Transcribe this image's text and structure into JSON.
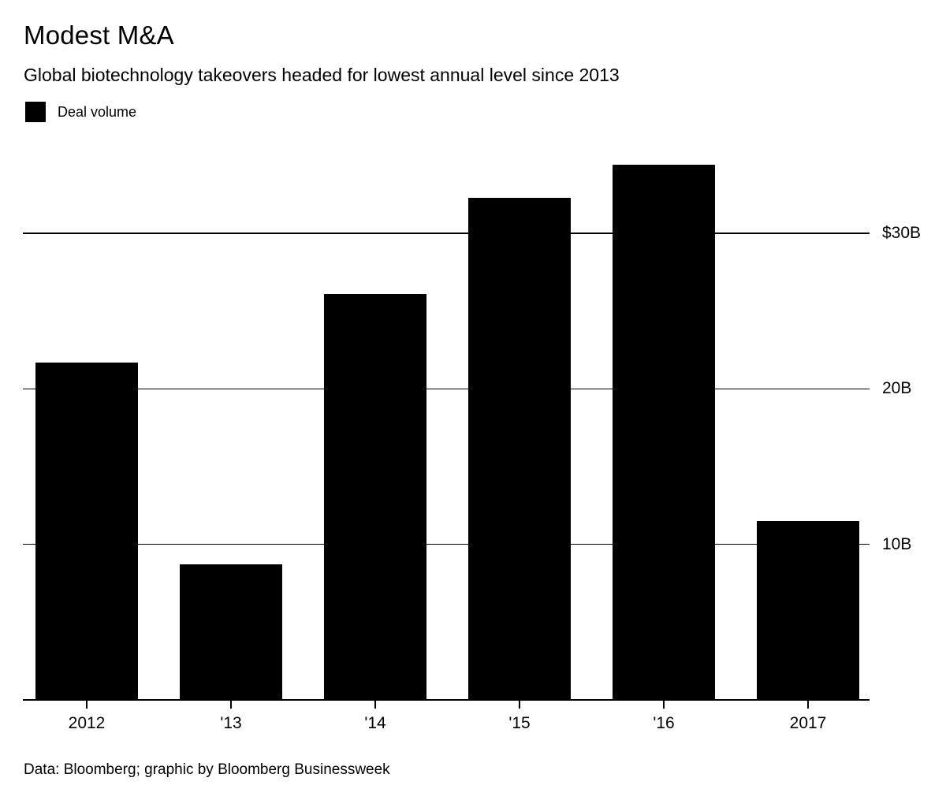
{
  "chart_data": {
    "type": "bar",
    "title": "Modest M&A",
    "subtitle": "Global biotechnology takeovers headed for lowest annual level since 2013",
    "legend": [
      "Deal volume"
    ],
    "categories": [
      "2012",
      "'13",
      "'14",
      "'15",
      "'16",
      "2017"
    ],
    "values": [
      21.7,
      8.7,
      26.1,
      32.3,
      34.4,
      11.5
    ],
    "unit": "billions of US dollars",
    "ylim": [
      0,
      35
    ],
    "yticks": [
      {
        "value": 30,
        "label": "$30B"
      },
      {
        "value": 20,
        "label": "20B"
      },
      {
        "value": 10,
        "label": "10B"
      }
    ],
    "ytick_side": "right",
    "grid": true,
    "bar_color": "#000000",
    "background_color": "#ffffff",
    "footer": "Data: Bloomberg; graphic by Bloomberg Businessweek"
  }
}
